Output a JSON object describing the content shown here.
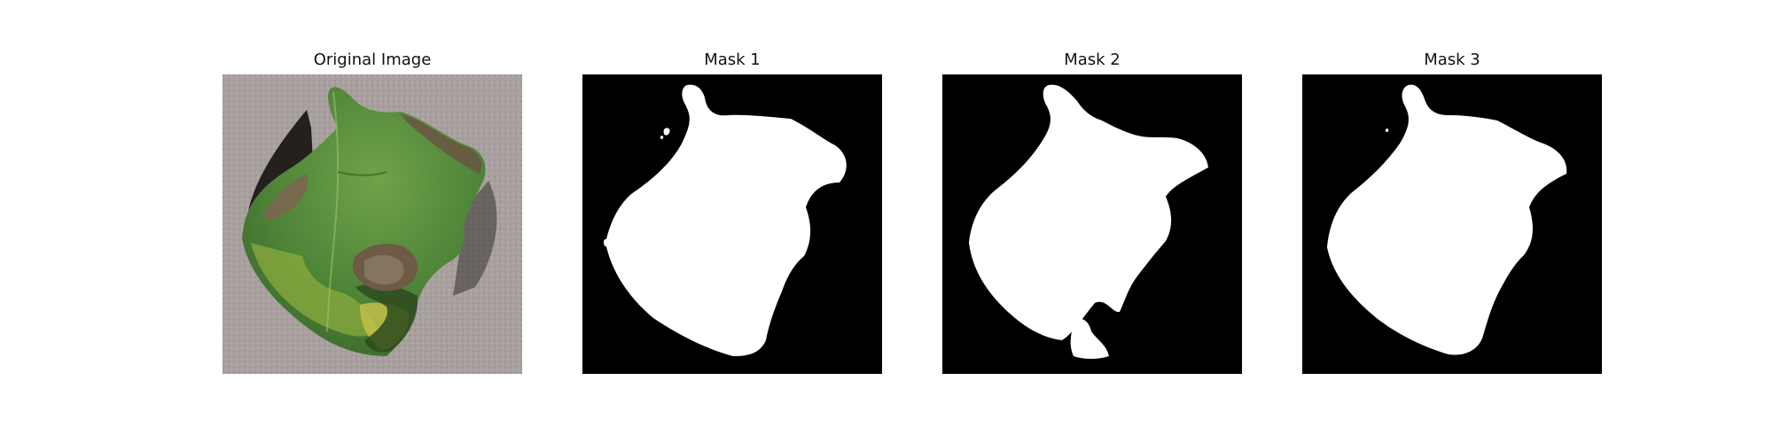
{
  "figure": {
    "panels": [
      {
        "title": "Original Image"
      },
      {
        "title": "Mask 1"
      },
      {
        "title": "Mask 2"
      },
      {
        "title": "Mask 3"
      }
    ]
  },
  "colors": {
    "background_page": "#ffffff",
    "mask_background": "#000000",
    "mask_foreground": "#ffffff",
    "leaf_green": "#5b8f3e",
    "leaf_dark_green": "#2f5a26",
    "leaf_yellow": "#c6c24a",
    "lesion_brown": "#6e5a45",
    "surface_gray": "#a59e9c",
    "shadow": "#1b1917"
  }
}
